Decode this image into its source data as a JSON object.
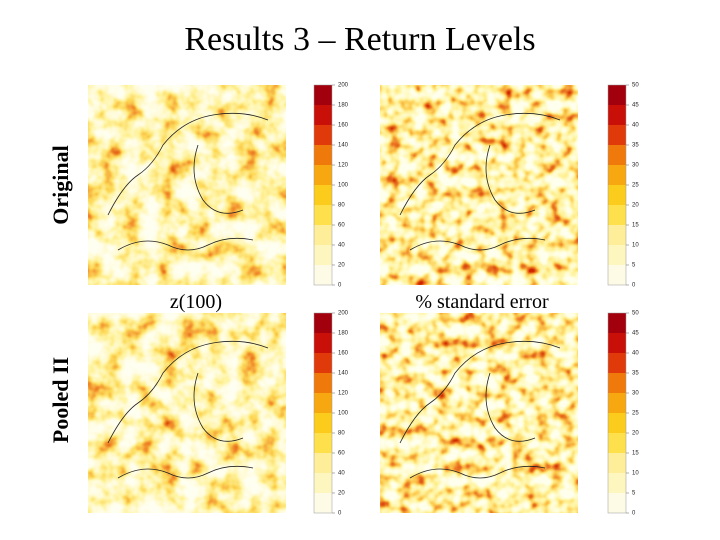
{
  "title": "Results 3 – Return Levels",
  "rows": [
    "Original",
    "Pooled II"
  ],
  "columns": [
    "z(100)",
    "% standard error"
  ],
  "colorbars": [
    {
      "ticks": [
        0,
        20,
        40,
        60,
        80,
        100,
        120,
        140,
        160,
        180,
        200
      ]
    },
    {
      "ticks": [
        0,
        5,
        10,
        15,
        20,
        25,
        30,
        35,
        40,
        45,
        50
      ]
    }
  ]
}
